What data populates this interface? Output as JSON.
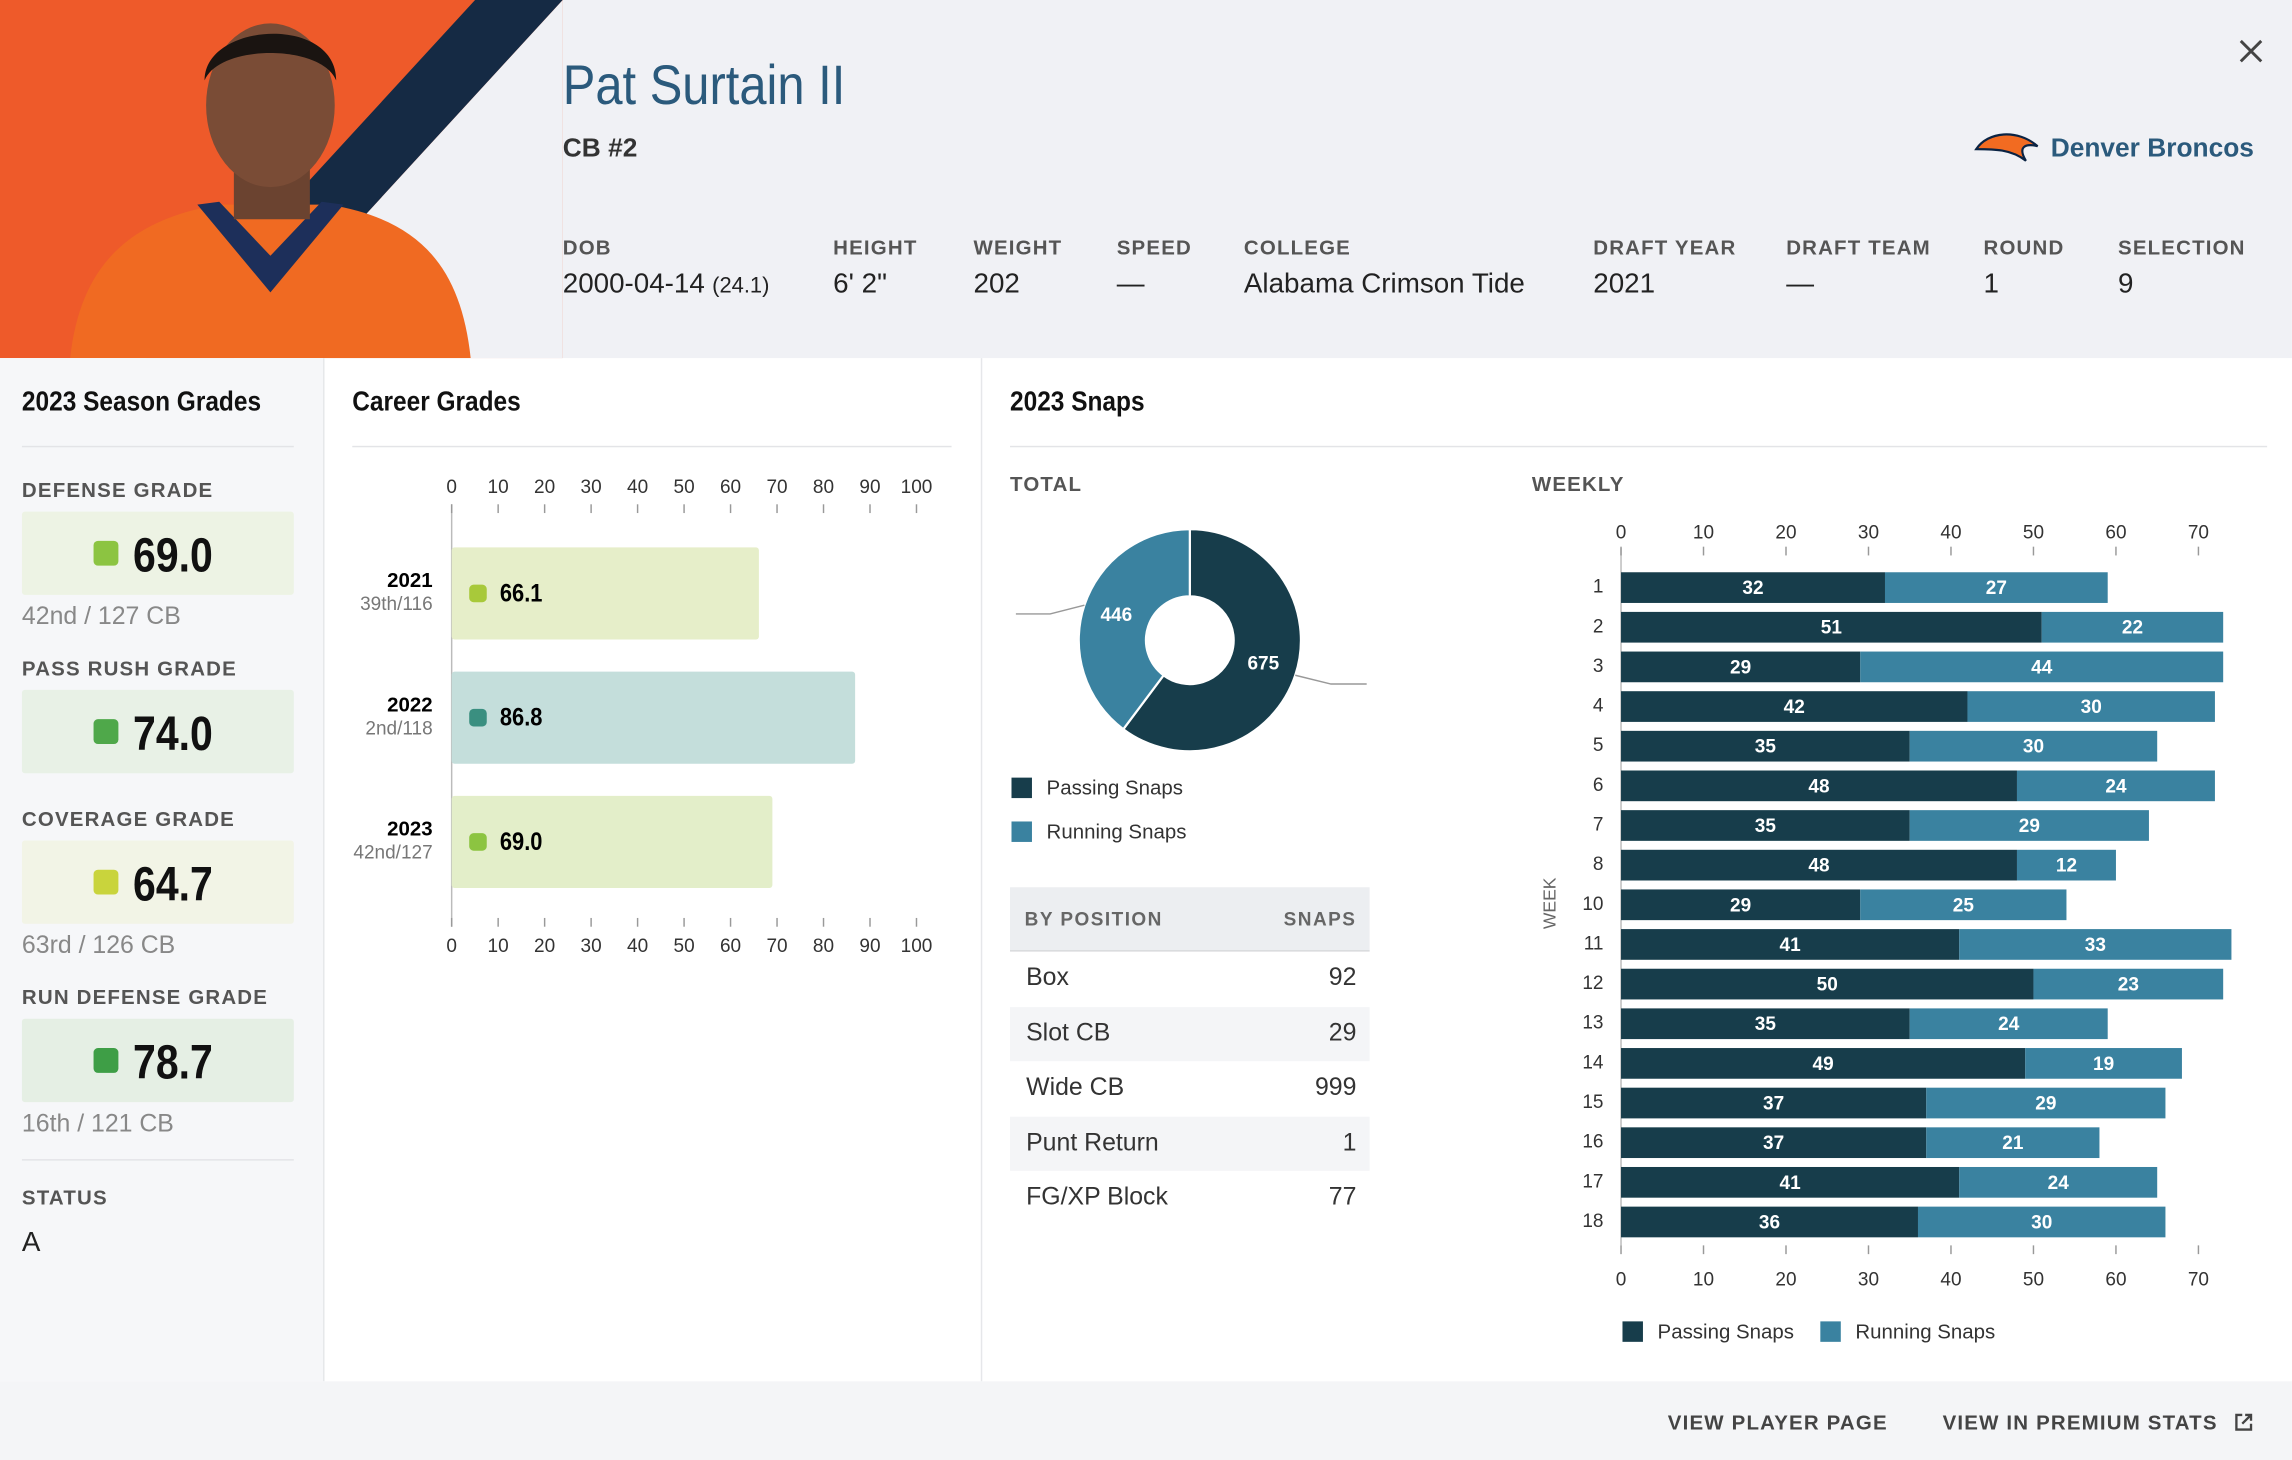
{
  "header": {
    "name": "Pat Surtain II",
    "position": "CB #2",
    "team": "Denver Broncos",
    "info": [
      {
        "label": "DOB",
        "value": "2000-04-14",
        "note": "(24.1)"
      },
      {
        "label": "HEIGHT",
        "value": "6' 2\""
      },
      {
        "label": "WEIGHT",
        "value": "202"
      },
      {
        "label": "SPEED",
        "value": "—"
      },
      {
        "label": "COLLEGE",
        "value": "Alabama Crimson Tide"
      },
      {
        "label": "DRAFT YEAR",
        "value": "2021"
      },
      {
        "label": "DRAFT TEAM",
        "value": "—"
      },
      {
        "label": "ROUND",
        "value": "1"
      },
      {
        "label": "SELECTION",
        "value": "9"
      }
    ]
  },
  "season_grades": {
    "title": "2023 Season Grades",
    "items": [
      {
        "label": "DEFENSE GRADE",
        "grade": "69.0",
        "rank": "42nd / 127 CB",
        "color": "#8cc441",
        "bg": "#edf3e4"
      },
      {
        "label": "PASS RUSH GRADE",
        "grade": "74.0",
        "color": "#4fa84a",
        "bg": "#e8f1e6"
      },
      {
        "label": "COVERAGE GRADE",
        "grade": "64.7",
        "rank": "63rd / 126 CB",
        "color": "#c9d43c",
        "bg": "#f2f4e6"
      },
      {
        "label": "RUN DEFENSE GRADE",
        "grade": "78.7",
        "rank": "16th / 121 CB",
        "color": "#3e9e46",
        "bg": "#e5efe4"
      }
    ],
    "status_label": "STATUS",
    "status": "A"
  },
  "chart_data": [
    {
      "type": "bar",
      "title": "Career Grades",
      "categories": [
        "2021",
        "2022",
        "2023"
      ],
      "sublabels": [
        "39th/116",
        "2nd/118",
        "42nd/127"
      ],
      "values": [
        66.1,
        86.8,
        69.0
      ],
      "value_labels": [
        "66.1",
        "86.8",
        "69.0"
      ],
      "colors": [
        "#e6eec9",
        "#c4dedb",
        "#e3eec9"
      ],
      "dot_colors": [
        "#a8c93a",
        "#3a8f80",
        "#8cc441"
      ],
      "xlim": [
        0,
        100
      ],
      "xticks": [
        0,
        10,
        20,
        30,
        40,
        50,
        60,
        70,
        80,
        90,
        100
      ]
    },
    {
      "type": "pie",
      "title": "2023 Snaps",
      "subtitle": "TOTAL",
      "categories": [
        "Passing Snaps",
        "Running Snaps"
      ],
      "values": [
        675,
        446
      ],
      "colors": [
        "#173d4b",
        "#3a82a0"
      ]
    },
    {
      "type": "stacked-bar",
      "title": "WEEKLY",
      "ylabel": "WEEK",
      "categories": [
        "1",
        "2",
        "3",
        "4",
        "5",
        "6",
        "7",
        "8",
        "10",
        "11",
        "12",
        "13",
        "14",
        "15",
        "16",
        "17",
        "18"
      ],
      "series": [
        {
          "name": "Passing Snaps",
          "color": "#173d4b",
          "values": [
            32,
            51,
            29,
            42,
            35,
            48,
            35,
            48,
            29,
            41,
            50,
            35,
            49,
            37,
            37,
            41,
            36
          ]
        },
        {
          "name": "Running Snaps",
          "color": "#3a82a0",
          "values": [
            27,
            22,
            44,
            30,
            30,
            24,
            29,
            12,
            25,
            33,
            23,
            24,
            19,
            29,
            21,
            24,
            30
          ]
        }
      ],
      "xlim": [
        0,
        74
      ],
      "xticks": [
        0,
        10,
        20,
        30,
        40,
        50,
        60,
        70
      ]
    }
  ],
  "by_position": {
    "header": [
      "BY POSITION",
      "SNAPS"
    ],
    "rows": [
      [
        "Box",
        "92"
      ],
      [
        "Slot CB",
        "29"
      ],
      [
        "Wide CB",
        "999"
      ],
      [
        "Punt Return",
        "1"
      ],
      [
        "FG/XP Block",
        "77"
      ]
    ]
  },
  "footer": [
    "VIEW PLAYER PAGE",
    "VIEW IN PREMIUM STATS"
  ]
}
